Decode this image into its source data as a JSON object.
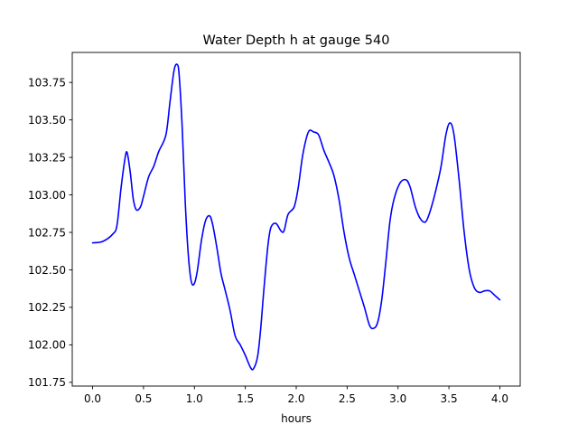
{
  "chart_data": {
    "type": "line",
    "title": "Water Depth h at gauge 540",
    "xlabel": "hours",
    "ylabel": "",
    "xlim": [
      -0.2,
      4.2
    ],
    "ylim": [
      101.725,
      103.95
    ],
    "xticks": [
      0.0,
      0.5,
      1.0,
      1.5,
      2.0,
      2.5,
      3.0,
      3.5,
      4.0
    ],
    "xtick_labels": [
      "0.0",
      "0.5",
      "1.0",
      "1.5",
      "2.0",
      "2.5",
      "3.0",
      "3.5",
      "4.0"
    ],
    "yticks": [
      101.75,
      102.0,
      102.25,
      102.5,
      102.75,
      103.0,
      103.25,
      103.5,
      103.75
    ],
    "ytick_labels": [
      "101.75",
      "102.00",
      "102.25",
      "102.50",
      "102.75",
      "103.00",
      "103.25",
      "103.50",
      "103.75"
    ],
    "grid": false,
    "legend": false,
    "colors": {
      "line": "#0000ff",
      "axes": "#000000",
      "background": "#ffffff"
    },
    "series": [
      {
        "points": [
          [
            0.0,
            102.68
          ],
          [
            0.1,
            102.69
          ],
          [
            0.2,
            102.74
          ],
          [
            0.24,
            102.8
          ],
          [
            0.28,
            103.05
          ],
          [
            0.32,
            103.25
          ],
          [
            0.34,
            103.28
          ],
          [
            0.37,
            103.15
          ],
          [
            0.4,
            102.97
          ],
          [
            0.43,
            102.9
          ],
          [
            0.47,
            102.92
          ],
          [
            0.5,
            102.99
          ],
          [
            0.55,
            103.12
          ],
          [
            0.6,
            103.19
          ],
          [
            0.65,
            103.29
          ],
          [
            0.72,
            103.4
          ],
          [
            0.76,
            103.62
          ],
          [
            0.8,
            103.83
          ],
          [
            0.83,
            103.87
          ],
          [
            0.85,
            103.8
          ],
          [
            0.88,
            103.45
          ],
          [
            0.91,
            102.95
          ],
          [
            0.94,
            102.6
          ],
          [
            0.97,
            102.42
          ],
          [
            1.0,
            102.41
          ],
          [
            1.03,
            102.5
          ],
          [
            1.07,
            102.7
          ],
          [
            1.11,
            102.83
          ],
          [
            1.15,
            102.86
          ],
          [
            1.18,
            102.8
          ],
          [
            1.22,
            102.65
          ],
          [
            1.26,
            102.48
          ],
          [
            1.3,
            102.37
          ],
          [
            1.35,
            102.23
          ],
          [
            1.4,
            102.06
          ],
          [
            1.45,
            102.0
          ],
          [
            1.5,
            101.93
          ],
          [
            1.55,
            101.85
          ],
          [
            1.58,
            101.84
          ],
          [
            1.62,
            101.92
          ],
          [
            1.65,
            102.1
          ],
          [
            1.68,
            102.35
          ],
          [
            1.72,
            102.65
          ],
          [
            1.75,
            102.78
          ],
          [
            1.8,
            102.81
          ],
          [
            1.85,
            102.76
          ],
          [
            1.88,
            102.76
          ],
          [
            1.92,
            102.87
          ],
          [
            1.98,
            102.92
          ],
          [
            2.02,
            103.05
          ],
          [
            2.06,
            103.25
          ],
          [
            2.1,
            103.38
          ],
          [
            2.13,
            103.43
          ],
          [
            2.17,
            103.42
          ],
          [
            2.22,
            103.4
          ],
          [
            2.27,
            103.3
          ],
          [
            2.32,
            103.22
          ],
          [
            2.37,
            103.13
          ],
          [
            2.42,
            102.97
          ],
          [
            2.47,
            102.75
          ],
          [
            2.52,
            102.58
          ],
          [
            2.57,
            102.47
          ],
          [
            2.62,
            102.36
          ],
          [
            2.67,
            102.25
          ],
          [
            2.72,
            102.13
          ],
          [
            2.76,
            102.11
          ],
          [
            2.8,
            102.15
          ],
          [
            2.84,
            102.3
          ],
          [
            2.88,
            102.55
          ],
          [
            2.92,
            102.82
          ],
          [
            2.96,
            102.97
          ],
          [
            3.02,
            103.08
          ],
          [
            3.08,
            103.1
          ],
          [
            3.12,
            103.05
          ],
          [
            3.17,
            102.92
          ],
          [
            3.22,
            102.84
          ],
          [
            3.27,
            102.82
          ],
          [
            3.31,
            102.88
          ],
          [
            3.36,
            103.0
          ],
          [
            3.42,
            103.18
          ],
          [
            3.47,
            103.4
          ],
          [
            3.51,
            103.48
          ],
          [
            3.55,
            103.4
          ],
          [
            3.6,
            103.1
          ],
          [
            3.65,
            102.75
          ],
          [
            3.7,
            102.5
          ],
          [
            3.75,
            102.38
          ],
          [
            3.8,
            102.35
          ],
          [
            3.85,
            102.36
          ],
          [
            3.9,
            102.36
          ],
          [
            3.95,
            102.33
          ],
          [
            4.0,
            102.3
          ]
        ]
      }
    ]
  }
}
